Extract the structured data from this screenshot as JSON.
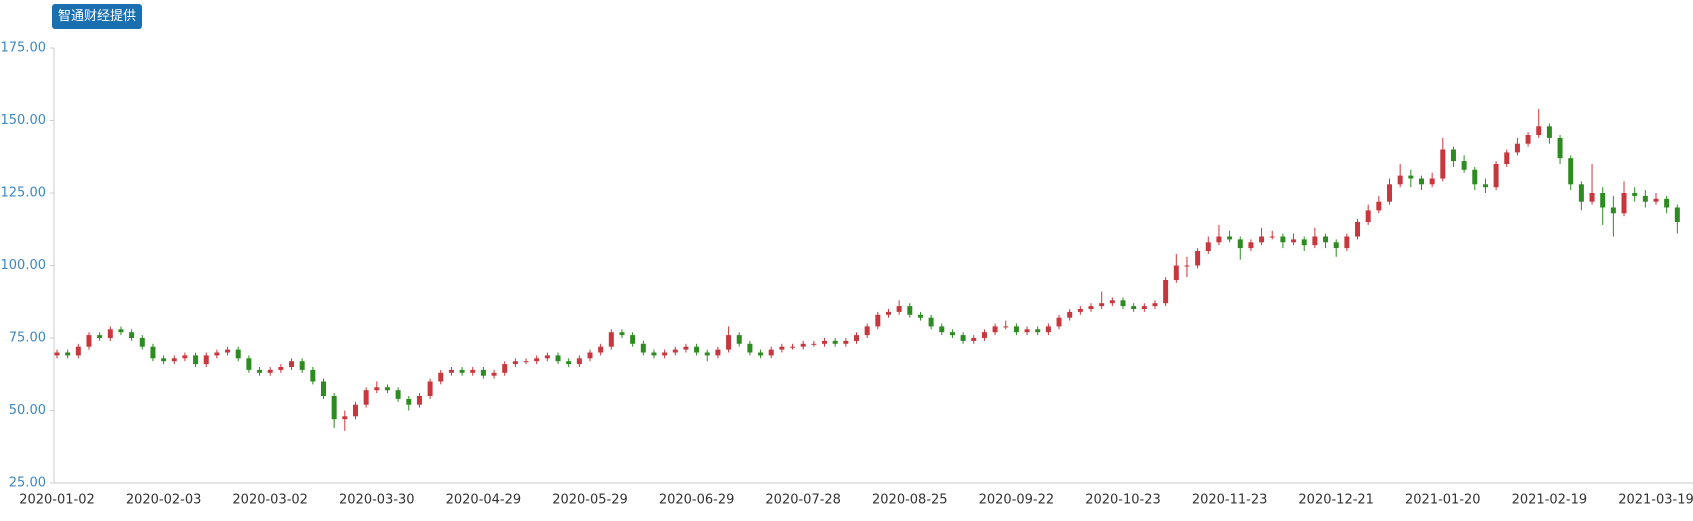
{
  "badge": "智通财经提供",
  "chart_data": {
    "type": "candlestick",
    "up_color": "#c8373d",
    "down_color": "#2e8b22",
    "ylim": [
      25,
      175
    ],
    "yticks": [
      {
        "value": 25,
        "label": "25.00"
      },
      {
        "value": 50,
        "label": "50.00"
      },
      {
        "value": 75,
        "label": "75.00"
      },
      {
        "value": 100,
        "label": "100.00"
      },
      {
        "value": 125,
        "label": "125.00"
      },
      {
        "value": 150,
        "label": "150.00"
      },
      {
        "value": 175,
        "label": "175.00"
      }
    ],
    "categories": [
      "2020-01-02",
      null,
      null,
      null,
      null,
      null,
      null,
      null,
      null,
      null,
      "2020-02-03",
      null,
      null,
      null,
      null,
      null,
      null,
      null,
      null,
      null,
      "2020-03-02",
      null,
      null,
      null,
      null,
      null,
      null,
      null,
      null,
      null,
      "2020-03-30",
      null,
      null,
      null,
      null,
      null,
      null,
      null,
      null,
      null,
      "2020-04-29",
      null,
      null,
      null,
      null,
      null,
      null,
      null,
      null,
      null,
      "2020-05-29",
      null,
      null,
      null,
      null,
      null,
      null,
      null,
      null,
      null,
      "2020-06-29",
      null,
      null,
      null,
      null,
      null,
      null,
      null,
      null,
      null,
      "2020-07-28",
      null,
      null,
      null,
      null,
      null,
      null,
      null,
      null,
      null,
      "2020-08-25",
      null,
      null,
      null,
      null,
      null,
      null,
      null,
      null,
      null,
      "2020-09-22",
      null,
      null,
      null,
      null,
      null,
      null,
      null,
      null,
      null,
      "2020-10-23",
      null,
      null,
      null,
      null,
      null,
      null,
      null,
      null,
      null,
      "2020-11-23",
      null,
      null,
      null,
      null,
      null,
      null,
      null,
      null,
      null,
      "2020-12-21",
      null,
      null,
      null,
      null,
      null,
      null,
      null,
      null,
      null,
      "2021-01-20",
      null,
      null,
      null,
      null,
      null,
      null,
      null,
      null,
      null,
      "2021-02-19",
      null,
      null,
      null,
      null,
      null,
      null,
      null,
      null,
      null,
      "2021-03-19",
      null,
      null
    ],
    "ohlc": [
      [
        69,
        71,
        68,
        70
      ],
      [
        70,
        71,
        68,
        69
      ],
      [
        69,
        73,
        68,
        72
      ],
      [
        72,
        77,
        71,
        76
      ],
      [
        76,
        77,
        74,
        75
      ],
      [
        75,
        79,
        74,
        78
      ],
      [
        78,
        79,
        76,
        77
      ],
      [
        77,
        78,
        74,
        75
      ],
      [
        75,
        76,
        71,
        72
      ],
      [
        72,
        73,
        67,
        68
      ],
      [
        68,
        69,
        66,
        67
      ],
      [
        67,
        69,
        66,
        68
      ],
      [
        68,
        70,
        67,
        69
      ],
      [
        69,
        70,
        65,
        66
      ],
      [
        66,
        70,
        65,
        69
      ],
      [
        69,
        71,
        68,
        70
      ],
      [
        70,
        72,
        69,
        71
      ],
      [
        71,
        72,
        67,
        68
      ],
      [
        68,
        69,
        63,
        64
      ],
      [
        64,
        65,
        62,
        63
      ],
      [
        63,
        65,
        62,
        64
      ],
      [
        64,
        66,
        63,
        65
      ],
      [
        65,
        68,
        64,
        67
      ],
      [
        67,
        68,
        63,
        64
      ],
      [
        64,
        65,
        59,
        60
      ],
      [
        60,
        61,
        54,
        55
      ],
      [
        55,
        56,
        44,
        47
      ],
      [
        47,
        50,
        43,
        48
      ],
      [
        48,
        53,
        47,
        52
      ],
      [
        52,
        58,
        51,
        57
      ],
      [
        57,
        60,
        56,
        58
      ],
      [
        58,
        59,
        56,
        57
      ],
      [
        57,
        58,
        53,
        54
      ],
      [
        54,
        55,
        50,
        52
      ],
      [
        52,
        56,
        51,
        55
      ],
      [
        55,
        61,
        54,
        60
      ],
      [
        60,
        64,
        59,
        63
      ],
      [
        63,
        65,
        62,
        64
      ],
      [
        64,
        65,
        62,
        63
      ],
      [
        63,
        65,
        62,
        64
      ],
      [
        64,
        65,
        61,
        62
      ],
      [
        62,
        64,
        61,
        63
      ],
      [
        63,
        67,
        62,
        66
      ],
      [
        66,
        68,
        65,
        67
      ],
      [
        67,
        68,
        66,
        67
      ],
      [
        67,
        69,
        66,
        68
      ],
      [
        68,
        70,
        67,
        69
      ],
      [
        69,
        70,
        66,
        67
      ],
      [
        67,
        68,
        65,
        66
      ],
      [
        66,
        69,
        65,
        68
      ],
      [
        68,
        71,
        67,
        70
      ],
      [
        70,
        73,
        69,
        72
      ],
      [
        72,
        78,
        71,
        77
      ],
      [
        77,
        78,
        75,
        76
      ],
      [
        76,
        77,
        72,
        73
      ],
      [
        73,
        74,
        69,
        70
      ],
      [
        70,
        71,
        68,
        69
      ],
      [
        69,
        71,
        68,
        70
      ],
      [
        70,
        72,
        69,
        71
      ],
      [
        71,
        73,
        70,
        72
      ],
      [
        72,
        73,
        69,
        70
      ],
      [
        70,
        71,
        67,
        69
      ],
      [
        69,
        72,
        68,
        71
      ],
      [
        71,
        79,
        70,
        76
      ],
      [
        76,
        77,
        72,
        73
      ],
      [
        73,
        74,
        69,
        70
      ],
      [
        70,
        71,
        68,
        69
      ],
      [
        69,
        72,
        68,
        71
      ],
      [
        71,
        73,
        70,
        72
      ],
      [
        72,
        73,
        71,
        72
      ],
      [
        72,
        74,
        71,
        73
      ],
      [
        73,
        74,
        72,
        73
      ],
      [
        73,
        75,
        72,
        74
      ],
      [
        74,
        75,
        72,
        73
      ],
      [
        73,
        75,
        72,
        74
      ],
      [
        74,
        77,
        73,
        76
      ],
      [
        76,
        80,
        75,
        79
      ],
      [
        79,
        84,
        78,
        83
      ],
      [
        83,
        85,
        82,
        84
      ],
      [
        84,
        88,
        83,
        86
      ],
      [
        86,
        87,
        82,
        83
      ],
      [
        83,
        84,
        81,
        82
      ],
      [
        82,
        83,
        78,
        79
      ],
      [
        79,
        80,
        76,
        77
      ],
      [
        77,
        78,
        75,
        76
      ],
      [
        76,
        77,
        73,
        74
      ],
      [
        74,
        76,
        73,
        75
      ],
      [
        75,
        78,
        74,
        77
      ],
      [
        77,
        80,
        76,
        79
      ],
      [
        79,
        81,
        78,
        79
      ],
      [
        79,
        80,
        76,
        77
      ],
      [
        77,
        79,
        76,
        78
      ],
      [
        78,
        79,
        76,
        77
      ],
      [
        77,
        80,
        76,
        79
      ],
      [
        79,
        83,
        78,
        82
      ],
      [
        82,
        85,
        81,
        84
      ],
      [
        84,
        86,
        83,
        85
      ],
      [
        85,
        87,
        84,
        86
      ],
      [
        86,
        91,
        85,
        87
      ],
      [
        87,
        89,
        86,
        88
      ],
      [
        88,
        89,
        85,
        86
      ],
      [
        86,
        87,
        84,
        85
      ],
      [
        85,
        87,
        84,
        86
      ],
      [
        86,
        88,
        85,
        87
      ],
      [
        87,
        96,
        86,
        95
      ],
      [
        95,
        104,
        94,
        100
      ],
      [
        100,
        103,
        96,
        100
      ],
      [
        100,
        106,
        99,
        105
      ],
      [
        105,
        110,
        104,
        108
      ],
      [
        108,
        114,
        107,
        110
      ],
      [
        110,
        112,
        108,
        109
      ],
      [
        109,
        110,
        102,
        106
      ],
      [
        106,
        109,
        105,
        108
      ],
      [
        108,
        113,
        107,
        110
      ],
      [
        110,
        112,
        109,
        110
      ],
      [
        110,
        111,
        106,
        108
      ],
      [
        108,
        111,
        107,
        109
      ],
      [
        109,
        110,
        105,
        107
      ],
      [
        107,
        113,
        106,
        110
      ],
      [
        110,
        111,
        106,
        108
      ],
      [
        108,
        109,
        103,
        106
      ],
      [
        106,
        111,
        105,
        110
      ],
      [
        110,
        116,
        109,
        115
      ],
      [
        115,
        121,
        114,
        119
      ],
      [
        119,
        124,
        118,
        122
      ],
      [
        122,
        130,
        121,
        128
      ],
      [
        128,
        135,
        127,
        131
      ],
      [
        131,
        133,
        127,
        130
      ],
      [
        130,
        131,
        126,
        128
      ],
      [
        128,
        132,
        127,
        130
      ],
      [
        130,
        144,
        129,
        140
      ],
      [
        140,
        141,
        134,
        136
      ],
      [
        136,
        138,
        132,
        133
      ],
      [
        133,
        134,
        126,
        128
      ],
      [
        128,
        130,
        125,
        127
      ],
      [
        127,
        136,
        126,
        135
      ],
      [
        135,
        140,
        134,
        139
      ],
      [
        139,
        144,
        138,
        142
      ],
      [
        142,
        146,
        141,
        145
      ],
      [
        145,
        154,
        144,
        148
      ],
      [
        148,
        149,
        142,
        144
      ],
      [
        144,
        145,
        135,
        137
      ],
      [
        137,
        138,
        126,
        128
      ],
      [
        128,
        129,
        119,
        122
      ],
      [
        122,
        135,
        121,
        125
      ],
      [
        125,
        127,
        114,
        120
      ],
      [
        120,
        124,
        110,
        118
      ],
      [
        118,
        129,
        117,
        125
      ],
      [
        125,
        127,
        122,
        124
      ],
      [
        124,
        126,
        120,
        122
      ],
      [
        122,
        125,
        121,
        123
      ],
      [
        123,
        124,
        118,
        120
      ],
      [
        120,
        121,
        111,
        115
      ]
    ]
  }
}
